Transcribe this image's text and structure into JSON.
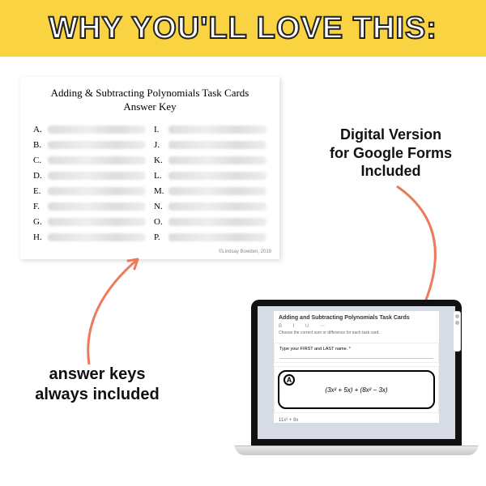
{
  "banner": {
    "title": "WHY YOU'LL LOVE THIS:",
    "bg_color": "#f9d342",
    "title_stroke": "#222222",
    "title_fill": "#ffffff",
    "title_fontsize": 38
  },
  "answer_key": {
    "title_line1": "Adding & Subtracting Polynomials Task Cards",
    "title_line2": "Answer Key",
    "letters_col1": [
      "A.",
      "B.",
      "C.",
      "D.",
      "E.",
      "F.",
      "G.",
      "H."
    ],
    "letters_col2": [
      "I.",
      "J.",
      "K.",
      "L.",
      "M.",
      "N.",
      "O.",
      "P."
    ],
    "credit": "©Lindsay Bowden, 2019",
    "card_bg": "#ffffff",
    "blur_color": "#dddddd"
  },
  "callouts": {
    "left_line1": "answer keys",
    "left_line2": "always included",
    "right_line1": "Digital Version",
    "right_line2": "for Google Forms",
    "right_line3": "Included",
    "text_color": "#111111"
  },
  "arrows": {
    "color": "#ec7b5c",
    "stroke_width": 3
  },
  "laptop": {
    "bezel_color": "#111111",
    "screen_bg": "#d7dbe6",
    "base_color": "#d8d8d8",
    "form": {
      "title": "Adding and Subtracting Polynomials Task Cards",
      "toolbar": "B  I  U  ⋯",
      "subtitle": "Choose the correct sum or difference for each task card.",
      "name_prompt": "Type your FIRST and LAST name. *",
      "task_letter": "A",
      "task_expression": "(3x² + 5x) + (8x² − 3x)",
      "option1": "11x² + 8x"
    }
  }
}
